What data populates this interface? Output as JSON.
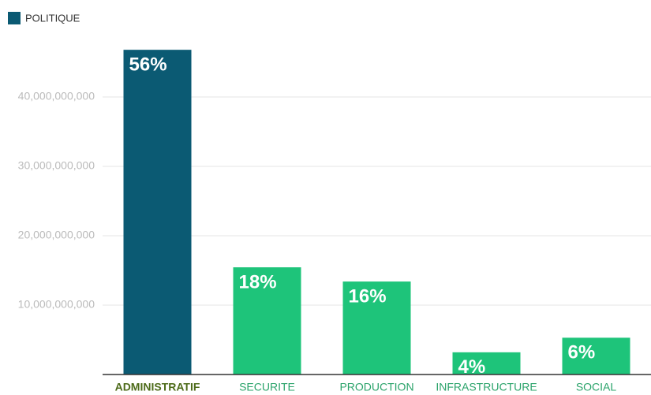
{
  "chart_data": {
    "type": "bar",
    "categories": [
      "ADMINISTRATIF",
      "SECURITE",
      "PRODUCTION",
      "INFRASTRUCTURE",
      "SOCIAL"
    ],
    "series": [
      {
        "name": "POLITIQUE",
        "color": "#0b5a73",
        "values": [
          46800000000,
          15450000000,
          13400000000,
          3200000000,
          5300000000
        ],
        "bar_colors": [
          "#0b5a73",
          "#1ec47a",
          "#1ec47a",
          "#1ec47a",
          "#1ec47a"
        ],
        "percent_labels": [
          "56%",
          "18%",
          "16%",
          "4%",
          "6%"
        ]
      }
    ],
    "category_label_colors": [
      "#4d6b1a",
      "#2aa36a",
      "#2aa36a",
      "#2aa36a",
      "#2aa36a"
    ],
    "ylim": [
      0,
      50000000000
    ],
    "yticks": [
      {
        "value": 10000000000,
        "label": "10,000,000,000"
      },
      {
        "value": 20000000000,
        "label": "20,000,000,000"
      },
      {
        "value": 30000000000,
        "label": "30,000,000,000"
      },
      {
        "value": 40000000000,
        "label": "40,000,000,000"
      }
    ],
    "grid": true,
    "legend": "top-left"
  }
}
